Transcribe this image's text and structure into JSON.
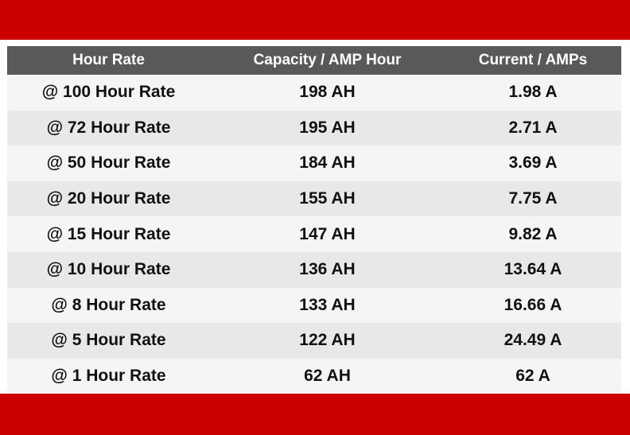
{
  "colors": {
    "band": "#cc0000",
    "header_bg": "#58595b",
    "row_light": "#f5f5f5",
    "row_dark": "#e8e8e8"
  },
  "table": {
    "headers": [
      "Hour Rate",
      "Capacity / AMP Hour",
      "Current / AMPs"
    ],
    "rows": [
      [
        "@ 100 Hour Rate",
        "198 AH",
        "1.98 A"
      ],
      [
        "@ 72 Hour Rate",
        "195 AH",
        "2.71 A"
      ],
      [
        "@ 50 Hour Rate",
        "184 AH",
        "3.69 A"
      ],
      [
        "@ 20 Hour Rate",
        "155 AH",
        "7.75 A"
      ],
      [
        "@ 15 Hour Rate",
        "147 AH",
        "9.82 A"
      ],
      [
        "@ 10 Hour Rate",
        "136 AH",
        "13.64 A"
      ],
      [
        "@ 8 Hour Rate",
        "133 AH",
        "16.66 A"
      ],
      [
        "@ 5 Hour Rate",
        "122 AH",
        "24.49 A"
      ],
      [
        "@ 1 Hour Rate",
        "62 AH",
        "62 A"
      ]
    ]
  }
}
